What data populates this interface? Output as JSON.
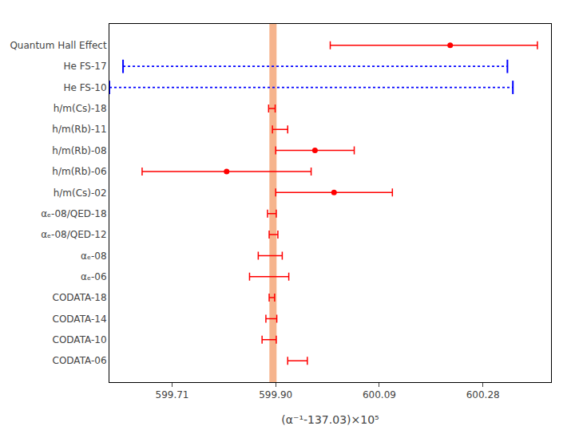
{
  "chart_data": {
    "type": "forest",
    "xlabel": "(α⁻¹-137.03)×10⁵",
    "xlim": [
      599.595,
      600.405
    ],
    "xticks": [
      599.71,
      {
        "value": 599.9,
        "label": "599.90"
      },
      600.09,
      600.28
    ],
    "grid": false,
    "reference_line": {
      "value": 599.895,
      "color": "#f5a87a"
    },
    "categories": [
      "Quantum Hall Effect",
      "He FS-17",
      "He FS-10",
      "h/m(Cs)-18",
      "h/m(Rb)-11",
      "h/m(Rb)-08",
      "h/m(Rb)-06",
      "h/m(Cs)-02",
      "αₑ-08/QED-18",
      "αₑ-08/QED-12",
      "αₑ-08",
      "αₑ-06",
      "CODATA-18",
      "CODATA-14",
      "CODATA-10",
      "CODATA-06"
    ],
    "series": [
      {
        "color": "red",
        "line_style": "solid",
        "marker": "circle",
        "values": [
          600.22,
          null,
          null,
          null,
          null,
          599.972,
          599.81,
          600.007,
          null,
          null,
          null,
          null,
          null,
          null,
          null,
          null
        ],
        "error_minus": [
          0.22,
          null,
          null,
          null,
          null,
          0.072,
          0.155,
          0.107,
          null,
          null,
          null,
          null,
          null,
          null,
          null,
          null
        ],
        "error_plus": [
          0.16,
          null,
          null,
          null,
          null,
          0.072,
          0.155,
          0.107,
          null,
          null,
          null,
          null,
          null,
          null,
          null,
          null
        ]
      },
      {
        "color": "red",
        "line_style": "solid",
        "marker": "none",
        "values": [
          null,
          null,
          null,
          599.893,
          599.908,
          null,
          null,
          null,
          599.893,
          599.896,
          599.89,
          599.888,
          599.893,
          599.892,
          599.888,
          599.94
        ],
        "error_minus": [
          null,
          null,
          null,
          0.006,
          0.014,
          null,
          null,
          null,
          0.008,
          0.008,
          0.022,
          0.036,
          0.005,
          0.01,
          0.013,
          0.018
        ],
        "error_plus": [
          null,
          null,
          null,
          0.006,
          0.014,
          null,
          null,
          null,
          0.008,
          0.008,
          0.022,
          0.036,
          0.005,
          0.01,
          0.013,
          0.018
        ]
      },
      {
        "color": "blue",
        "line_style": "dotted",
        "marker": "none",
        "values": [
          null,
          599.895,
          599.895,
          null,
          null,
          null,
          null,
          null,
          null,
          null,
          null,
          null,
          null,
          null,
          null,
          null
        ],
        "error_minus": [
          null,
          0.275,
          0.3,
          null,
          null,
          null,
          null,
          null,
          null,
          null,
          null,
          null,
          null,
          null,
          null,
          null
        ],
        "error_plus": [
          null,
          0.43,
          0.44,
          null,
          null,
          null,
          null,
          null,
          null,
          null,
          null,
          null,
          null,
          null,
          null,
          null
        ]
      }
    ]
  }
}
